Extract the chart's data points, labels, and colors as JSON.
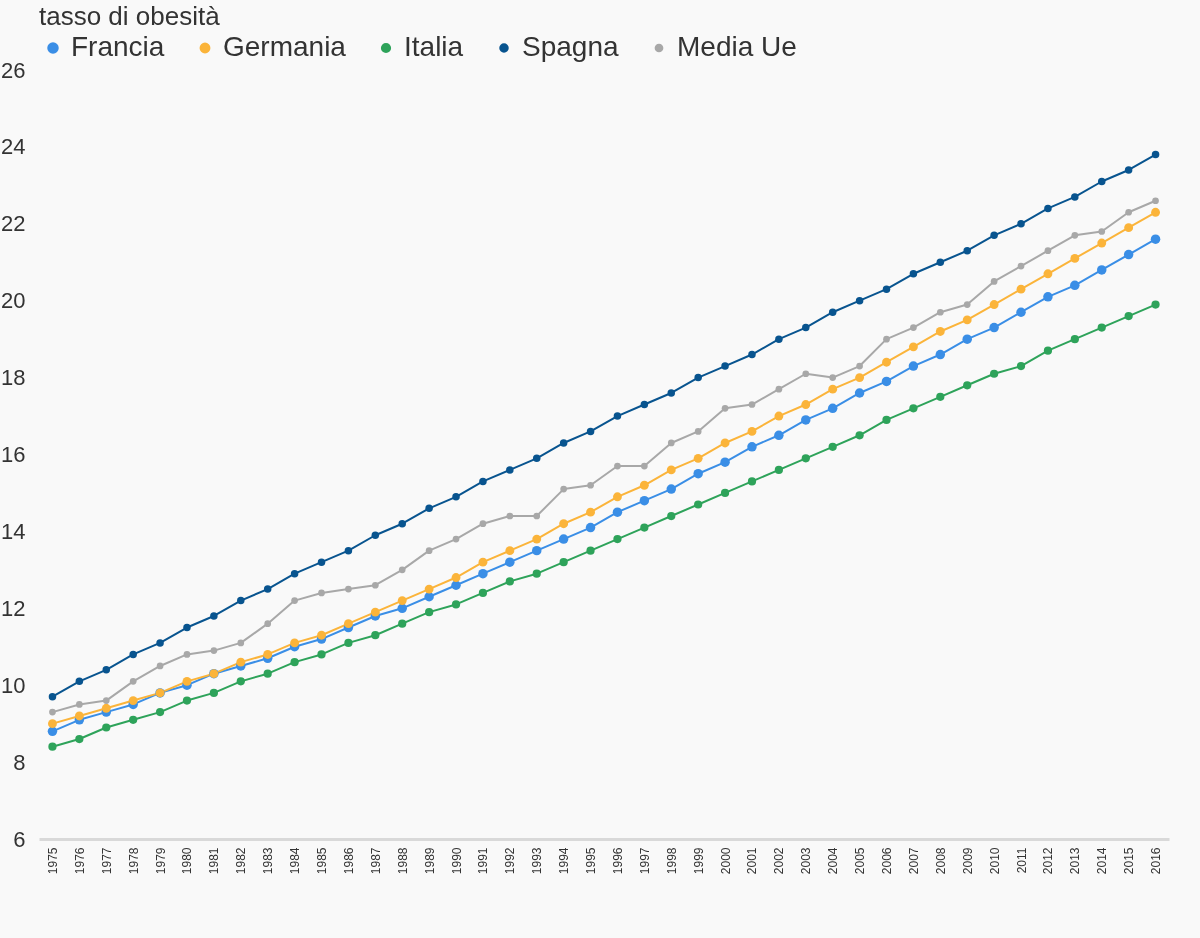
{
  "chart_data": {
    "type": "line",
    "title": "tasso di obesità",
    "categories": [
      "1975",
      "1976",
      "1977",
      "1978",
      "1979",
      "1980",
      "1981",
      "1982",
      "1983",
      "1984",
      "1985",
      "1986",
      "1987",
      "1988",
      "1989",
      "1990",
      "1991",
      "1992",
      "1993",
      "1994",
      "1995",
      "1996",
      "1997",
      "1998",
      "1999",
      "2000",
      "2001",
      "2002",
      "2003",
      "2004",
      "2005",
      "2006",
      "2007",
      "2008",
      "2009",
      "2010",
      "2011",
      "2012",
      "2013",
      "2014",
      "2015",
      "2016"
    ],
    "series": [
      {
        "name": "Francia",
        "color": "#3a8ee6",
        "values": [
          8.8,
          9.1,
          9.3,
          9.5,
          9.8,
          10.0,
          10.3,
          10.5,
          10.7,
          11.0,
          11.2,
          11.5,
          11.8,
          12.0,
          12.3,
          12.6,
          12.9,
          13.2,
          13.5,
          13.8,
          14.1,
          14.5,
          14.8,
          15.1,
          15.5,
          15.8,
          16.2,
          16.5,
          16.9,
          17.2,
          17.6,
          17.9,
          18.3,
          18.6,
          19.0,
          19.3,
          19.7,
          20.1,
          20.4,
          20.8,
          21.2,
          21.6
        ]
      },
      {
        "name": "Germania",
        "color": "#fbb43a",
        "values": [
          9.0,
          9.2,
          9.4,
          9.6,
          9.8,
          10.1,
          10.3,
          10.6,
          10.8,
          11.1,
          11.3,
          11.6,
          11.9,
          12.2,
          12.5,
          12.8,
          13.2,
          13.5,
          13.8,
          14.2,
          14.5,
          14.9,
          15.2,
          15.6,
          15.9,
          16.3,
          16.6,
          17.0,
          17.3,
          17.7,
          18.0,
          18.4,
          18.8,
          19.2,
          19.5,
          19.9,
          20.3,
          20.7,
          21.1,
          21.5,
          21.9,
          22.3
        ]
      },
      {
        "name": "Italia",
        "color": "#2ea35a",
        "values": [
          8.4,
          8.6,
          8.9,
          9.1,
          9.3,
          9.6,
          9.8,
          10.1,
          10.3,
          10.6,
          10.8,
          11.1,
          11.3,
          11.6,
          11.9,
          12.1,
          12.4,
          12.7,
          12.9,
          13.2,
          13.5,
          13.8,
          14.1,
          14.4,
          14.7,
          15.0,
          15.3,
          15.6,
          15.9,
          16.2,
          16.5,
          16.9,
          17.2,
          17.5,
          17.8,
          18.1,
          18.3,
          18.7,
          19.0,
          19.3,
          19.6,
          19.9
        ]
      },
      {
        "name": "Spagna",
        "color": "#08548f",
        "values": [
          9.7,
          10.1,
          10.4,
          10.8,
          11.1,
          11.5,
          11.8,
          12.2,
          12.5,
          12.9,
          13.2,
          13.5,
          13.9,
          14.2,
          14.6,
          14.9,
          15.3,
          15.6,
          15.9,
          16.3,
          16.6,
          17.0,
          17.3,
          17.6,
          18.0,
          18.3,
          18.6,
          19.0,
          19.3,
          19.7,
          20.0,
          20.3,
          20.7,
          21.0,
          21.3,
          21.7,
          22.0,
          22.4,
          22.7,
          23.1,
          23.4,
          23.8
        ]
      },
      {
        "name": "Media Ue",
        "color": "#a8a8a8",
        "values": [
          9.3,
          9.5,
          9.6,
          10.1,
          10.5,
          10.8,
          10.9,
          11.1,
          11.6,
          12.2,
          12.4,
          12.5,
          12.6,
          13.0,
          13.5,
          13.8,
          14.2,
          14.4,
          14.4,
          15.1,
          15.2,
          15.7,
          15.7,
          16.3,
          16.6,
          17.2,
          17.3,
          17.7,
          18.1,
          18.0,
          18.3,
          19.0,
          19.3,
          19.7,
          19.9,
          20.5,
          20.9,
          21.3,
          21.7,
          21.8,
          22.3,
          22.6
        ]
      }
    ],
    "ylim": [
      6,
      26
    ],
    "yticks": [
      6,
      8,
      10,
      12,
      14,
      16,
      18,
      20,
      22,
      24,
      26
    ],
    "grid": false,
    "legend": "top left",
    "marker": "circle",
    "line_style": "solid"
  }
}
